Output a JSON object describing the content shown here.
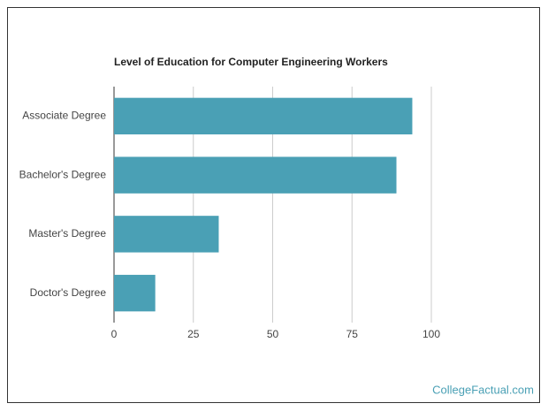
{
  "chart_data": {
    "type": "hbar",
    "title": "Level of Education for Computer Engineering Workers",
    "categories": [
      "Associate Degree",
      "Bachelor's Degree",
      "Master's Degree",
      "Doctor's Degree"
    ],
    "values": [
      94,
      89,
      33,
      13
    ],
    "color": "#4aa0b5",
    "xlim": [
      0,
      100
    ],
    "xticks": [
      0,
      25,
      50,
      75,
      100
    ],
    "grid": true,
    "watermark": "CollegeFactual.com"
  }
}
